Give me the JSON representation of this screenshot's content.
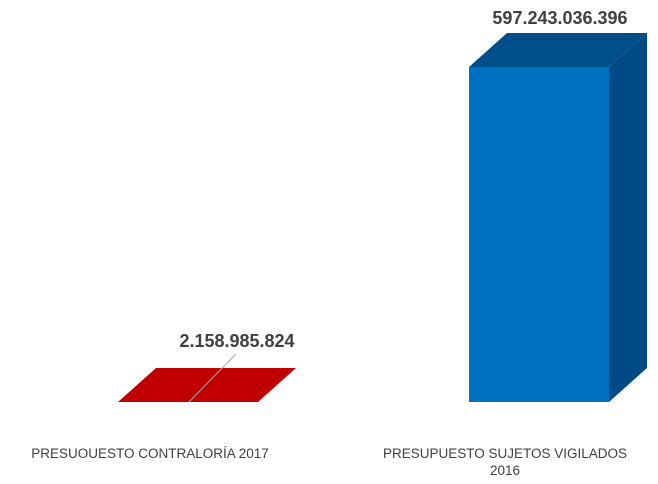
{
  "chart_data": {
    "type": "bar",
    "style": "3d-column",
    "categories": [
      [
        "PRESUOUESTO CONTRALORÍA 2017"
      ],
      [
        "PRESUPUESTO SUJETOS VIGILADOS",
        "2016"
      ]
    ],
    "values": [
      2158985824,
      597243036396
    ],
    "data_labels": [
      "2.158.985.824",
      "597.243.036.396"
    ],
    "colors": [
      {
        "front": "#c00000",
        "top": "#c00000",
        "side": "#8b0000"
      },
      {
        "front": "#0070c0",
        "top": "#004e8a",
        "side": "#004a85"
      }
    ],
    "grid": false,
    "legend": "none",
    "title": "",
    "xlabel": "",
    "ylabel": ""
  }
}
